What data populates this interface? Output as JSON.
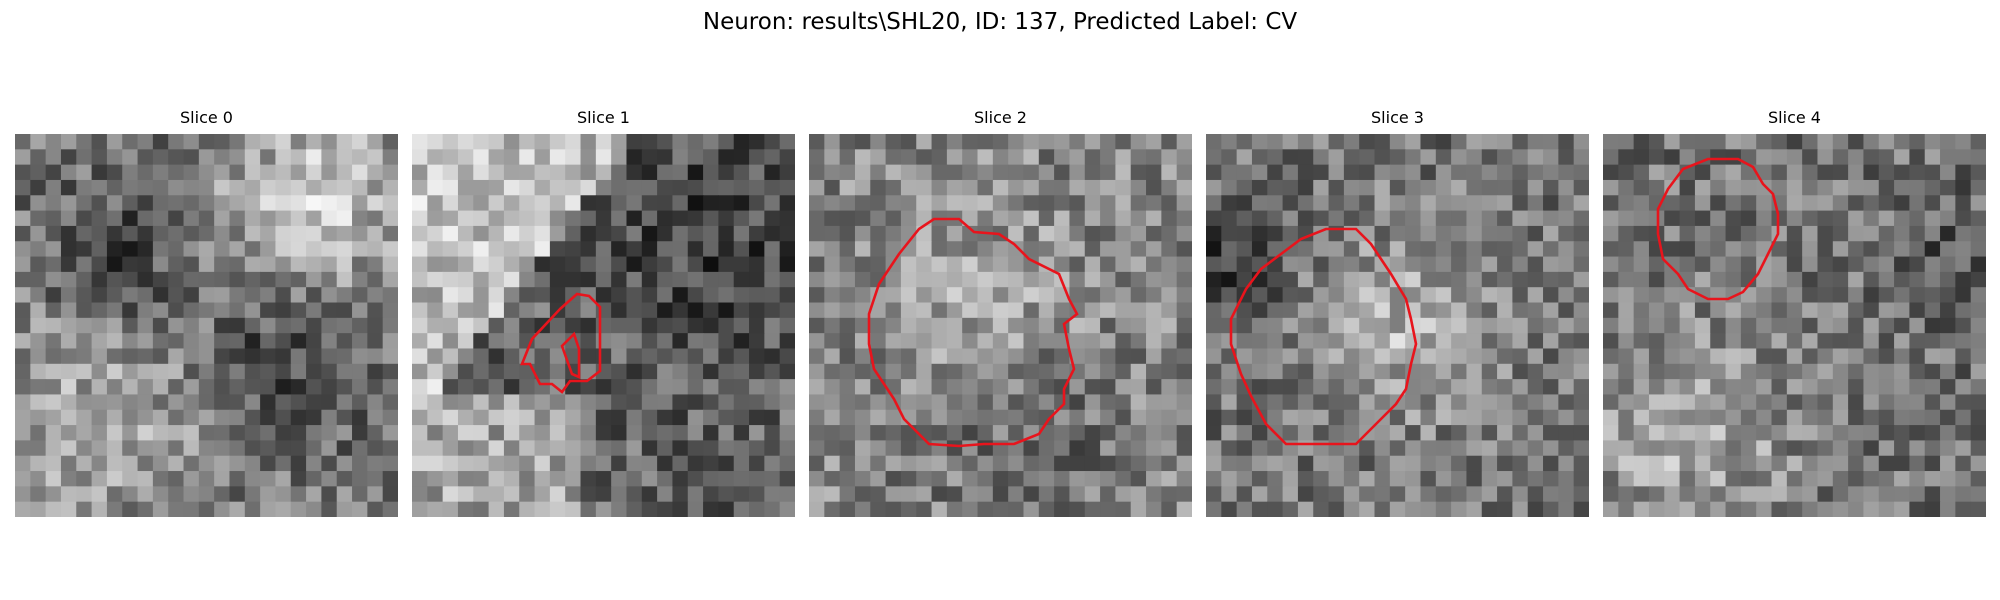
{
  "figure": {
    "title": "Neuron: results\\SHL20, ID: 137, Predicted Label: CV"
  },
  "outline_color": "#e8141c",
  "panels": [
    {
      "title": "Slice 0",
      "image": "grayscale-noise-no-outline"
    },
    {
      "title": "Slice 1",
      "image": "grayscale-noise-small-red-outline"
    },
    {
      "title": "Slice 2",
      "image": "grayscale-noise-large-red-outline"
    },
    {
      "title": "Slice 3",
      "image": "grayscale-noise-large-red-outline"
    },
    {
      "title": "Slice 4",
      "image": "grayscale-noise-red-outline"
    }
  ]
}
